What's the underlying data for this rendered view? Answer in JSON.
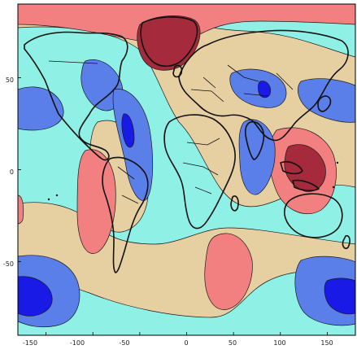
{
  "map": {
    "type": "filled-contour-map",
    "projection": "equirectangular",
    "lon_range": [
      -180,
      180
    ],
    "lat_range": [
      -90,
      90
    ],
    "x_ticks": [
      -150,
      -100,
      -50,
      0,
      50,
      100,
      150
    ],
    "y_ticks": [
      50,
      0,
      -50
    ],
    "levels_colors": {
      "strong_low": "#1a1ae6",
      "low": "#5b7fe8",
      "weak_low": "#8ff0e6",
      "weak_high": "#e6cfa1",
      "high": "#f28080",
      "strong_high": "#a52a3c"
    },
    "frame_color": "#000000"
  },
  "x_tick_labels": [
    "-150",
    "-100",
    "-50",
    "0",
    "50",
    "100",
    "150"
  ],
  "y_tick_labels": [
    "50",
    "0",
    "-50"
  ]
}
